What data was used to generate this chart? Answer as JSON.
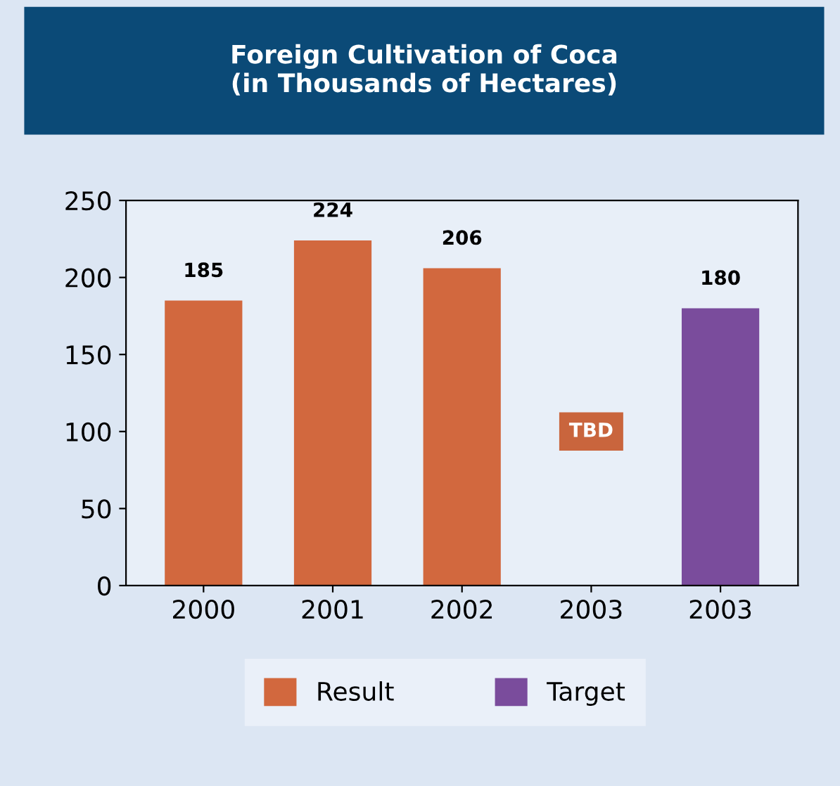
{
  "chart_data": {
    "type": "bar",
    "title": "Foreign Cultivation of Coca\n(in Thousands of Hectares)",
    "categories": [
      "2000",
      "2001",
      "2002",
      "2003",
      "2003"
    ],
    "series": [
      {
        "name": "Result",
        "color": "#d2683e",
        "values": [
          185,
          224,
          206,
          null,
          null
        ]
      },
      {
        "name": "Target",
        "color": "#7a4c9c",
        "values": [
          null,
          null,
          null,
          null,
          180
        ]
      }
    ],
    "ylim": [
      0,
      250
    ],
    "yticks": [
      0,
      50,
      100,
      150,
      200,
      250
    ],
    "data_labels": true,
    "grid": false,
    "legend": "bottom",
    "annotations": [
      "TBD"
    ]
  }
}
